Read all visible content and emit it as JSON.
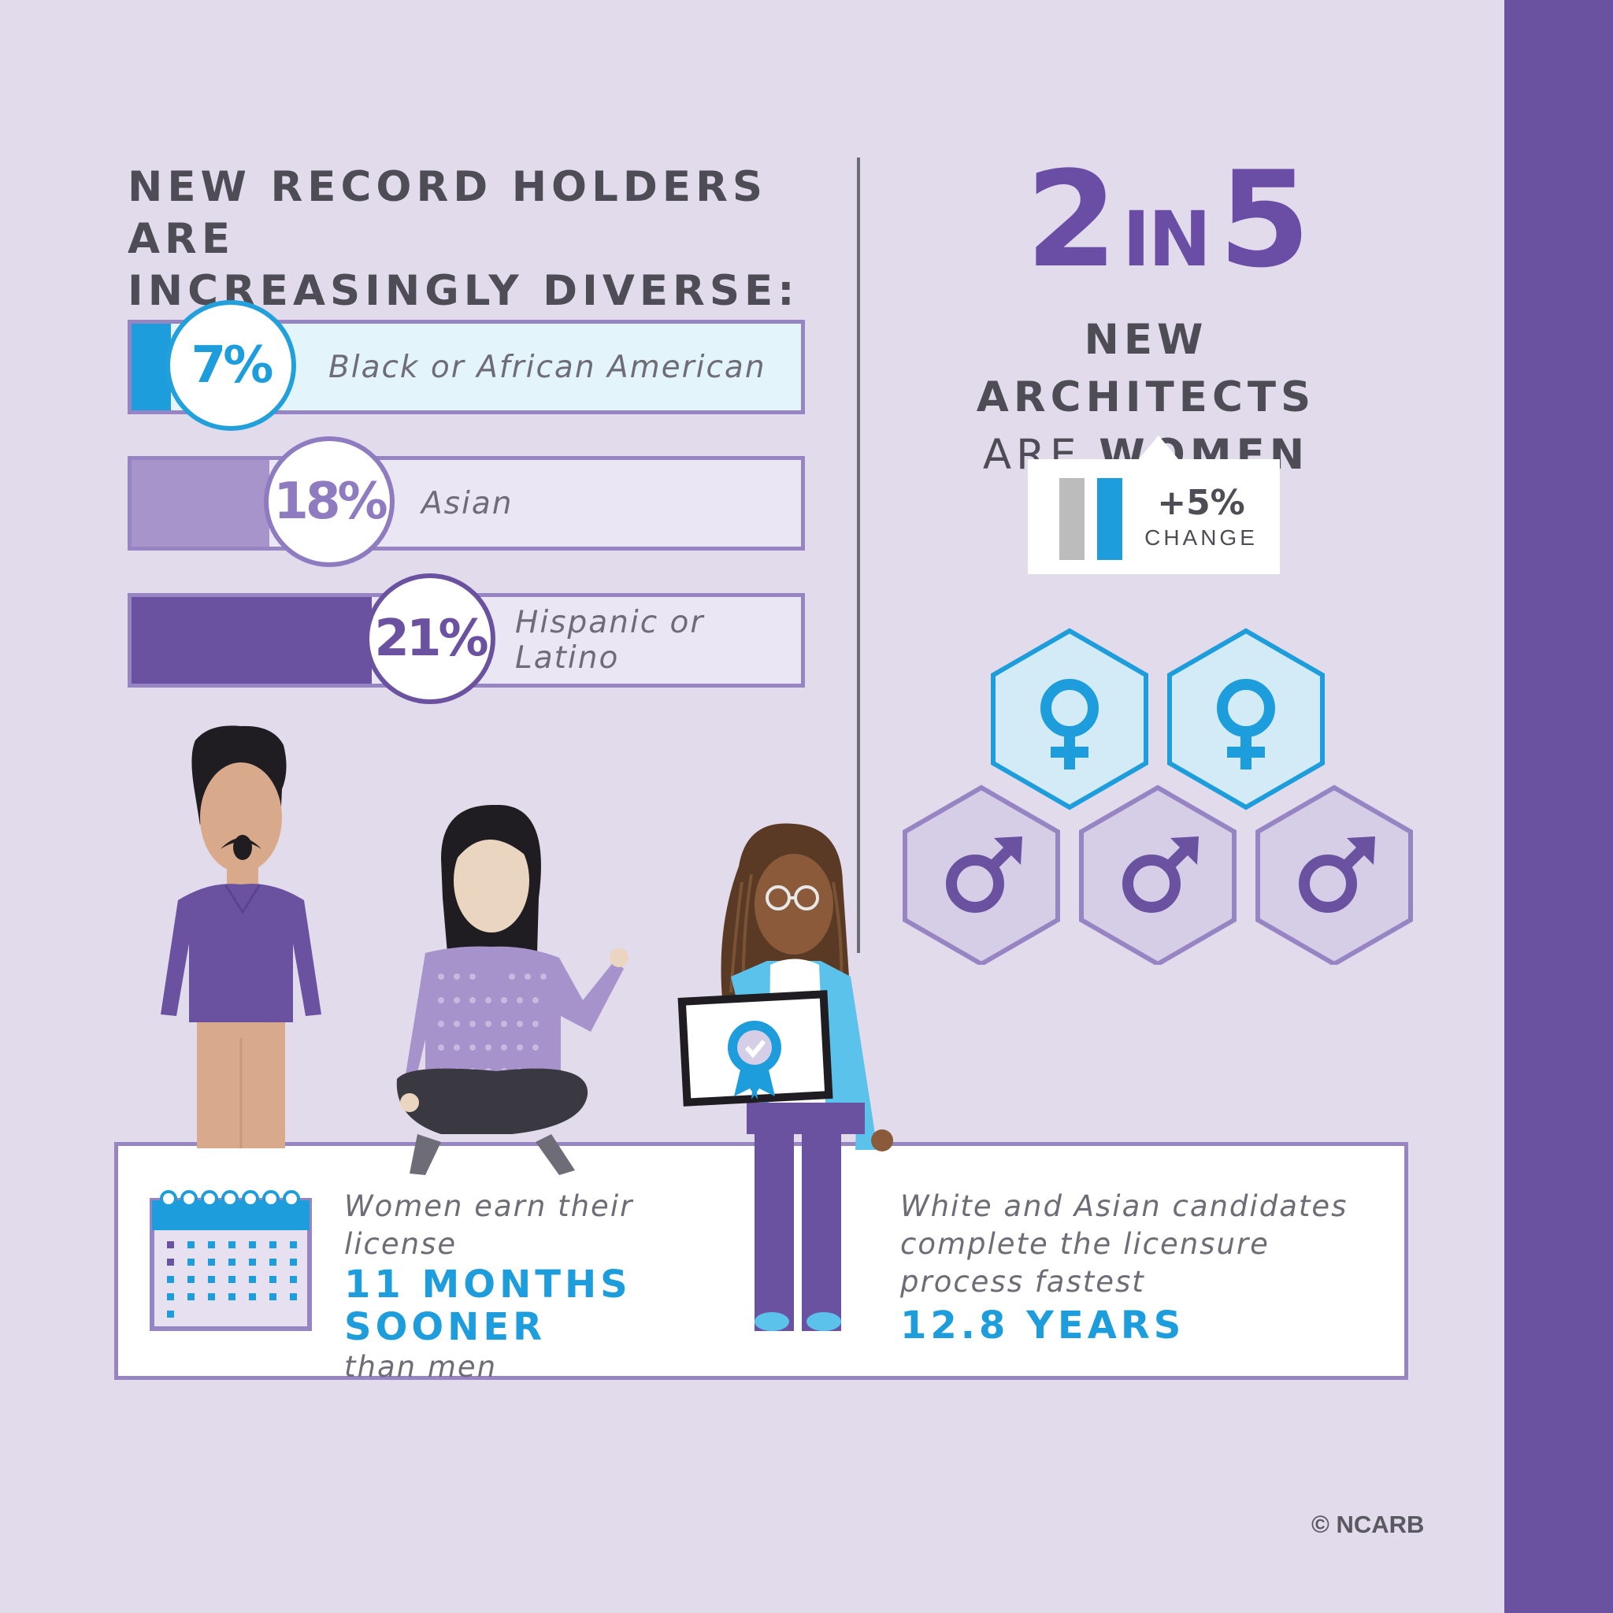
{
  "heading": {
    "line1": "NEW RECORD HOLDERS ARE",
    "line2": "INCREASINGLY DIVERSE:"
  },
  "diversity": [
    {
      "percent": "7%",
      "label": "Black or African American",
      "value": 7,
      "fill": "#1d9ddb",
      "bg": "#e4f4fb",
      "badge_border": "#21a0dc",
      "badge_text": "#1d9ddb"
    },
    {
      "percent": "18%",
      "label": "Asian",
      "value": 18,
      "fill": "#a694ca",
      "bg": "#ebe6f3",
      "badge_border": "#8f7bbf",
      "badge_text": "#8f7bbf"
    },
    {
      "percent": "21%",
      "label": "Hispanic or Latino",
      "value": 21,
      "fill": "#6b52a1",
      "bg": "#ebe6f3",
      "badge_border": "#6b52a1",
      "badge_text": "#6b52a1"
    }
  ],
  "women_stat": {
    "numerator": "2",
    "word": "IN",
    "denominator": "5",
    "line1": "NEW ARCHITECTS",
    "line2_prefix": "ARE ",
    "line2_bold": "WOMEN"
  },
  "change": {
    "value": "+5%",
    "label": "CHANGE"
  },
  "gender_icons": {
    "female_count": 2,
    "male_count": 3
  },
  "license_time": {
    "line1": "Women earn their license",
    "highlight1": "11 MONTHS",
    "highlight2": "SOONER",
    "line_after": "than men"
  },
  "completion": {
    "line1": "White and Asian candidates",
    "line2": "complete the licensure",
    "line3": "process fastest",
    "highlight": "12.8 YEARS"
  },
  "copyright": "© NCARB",
  "colors": {
    "accent_blue": "#1d9ddb",
    "accent_purple": "#6b52a1",
    "background": "#e2dbec"
  }
}
